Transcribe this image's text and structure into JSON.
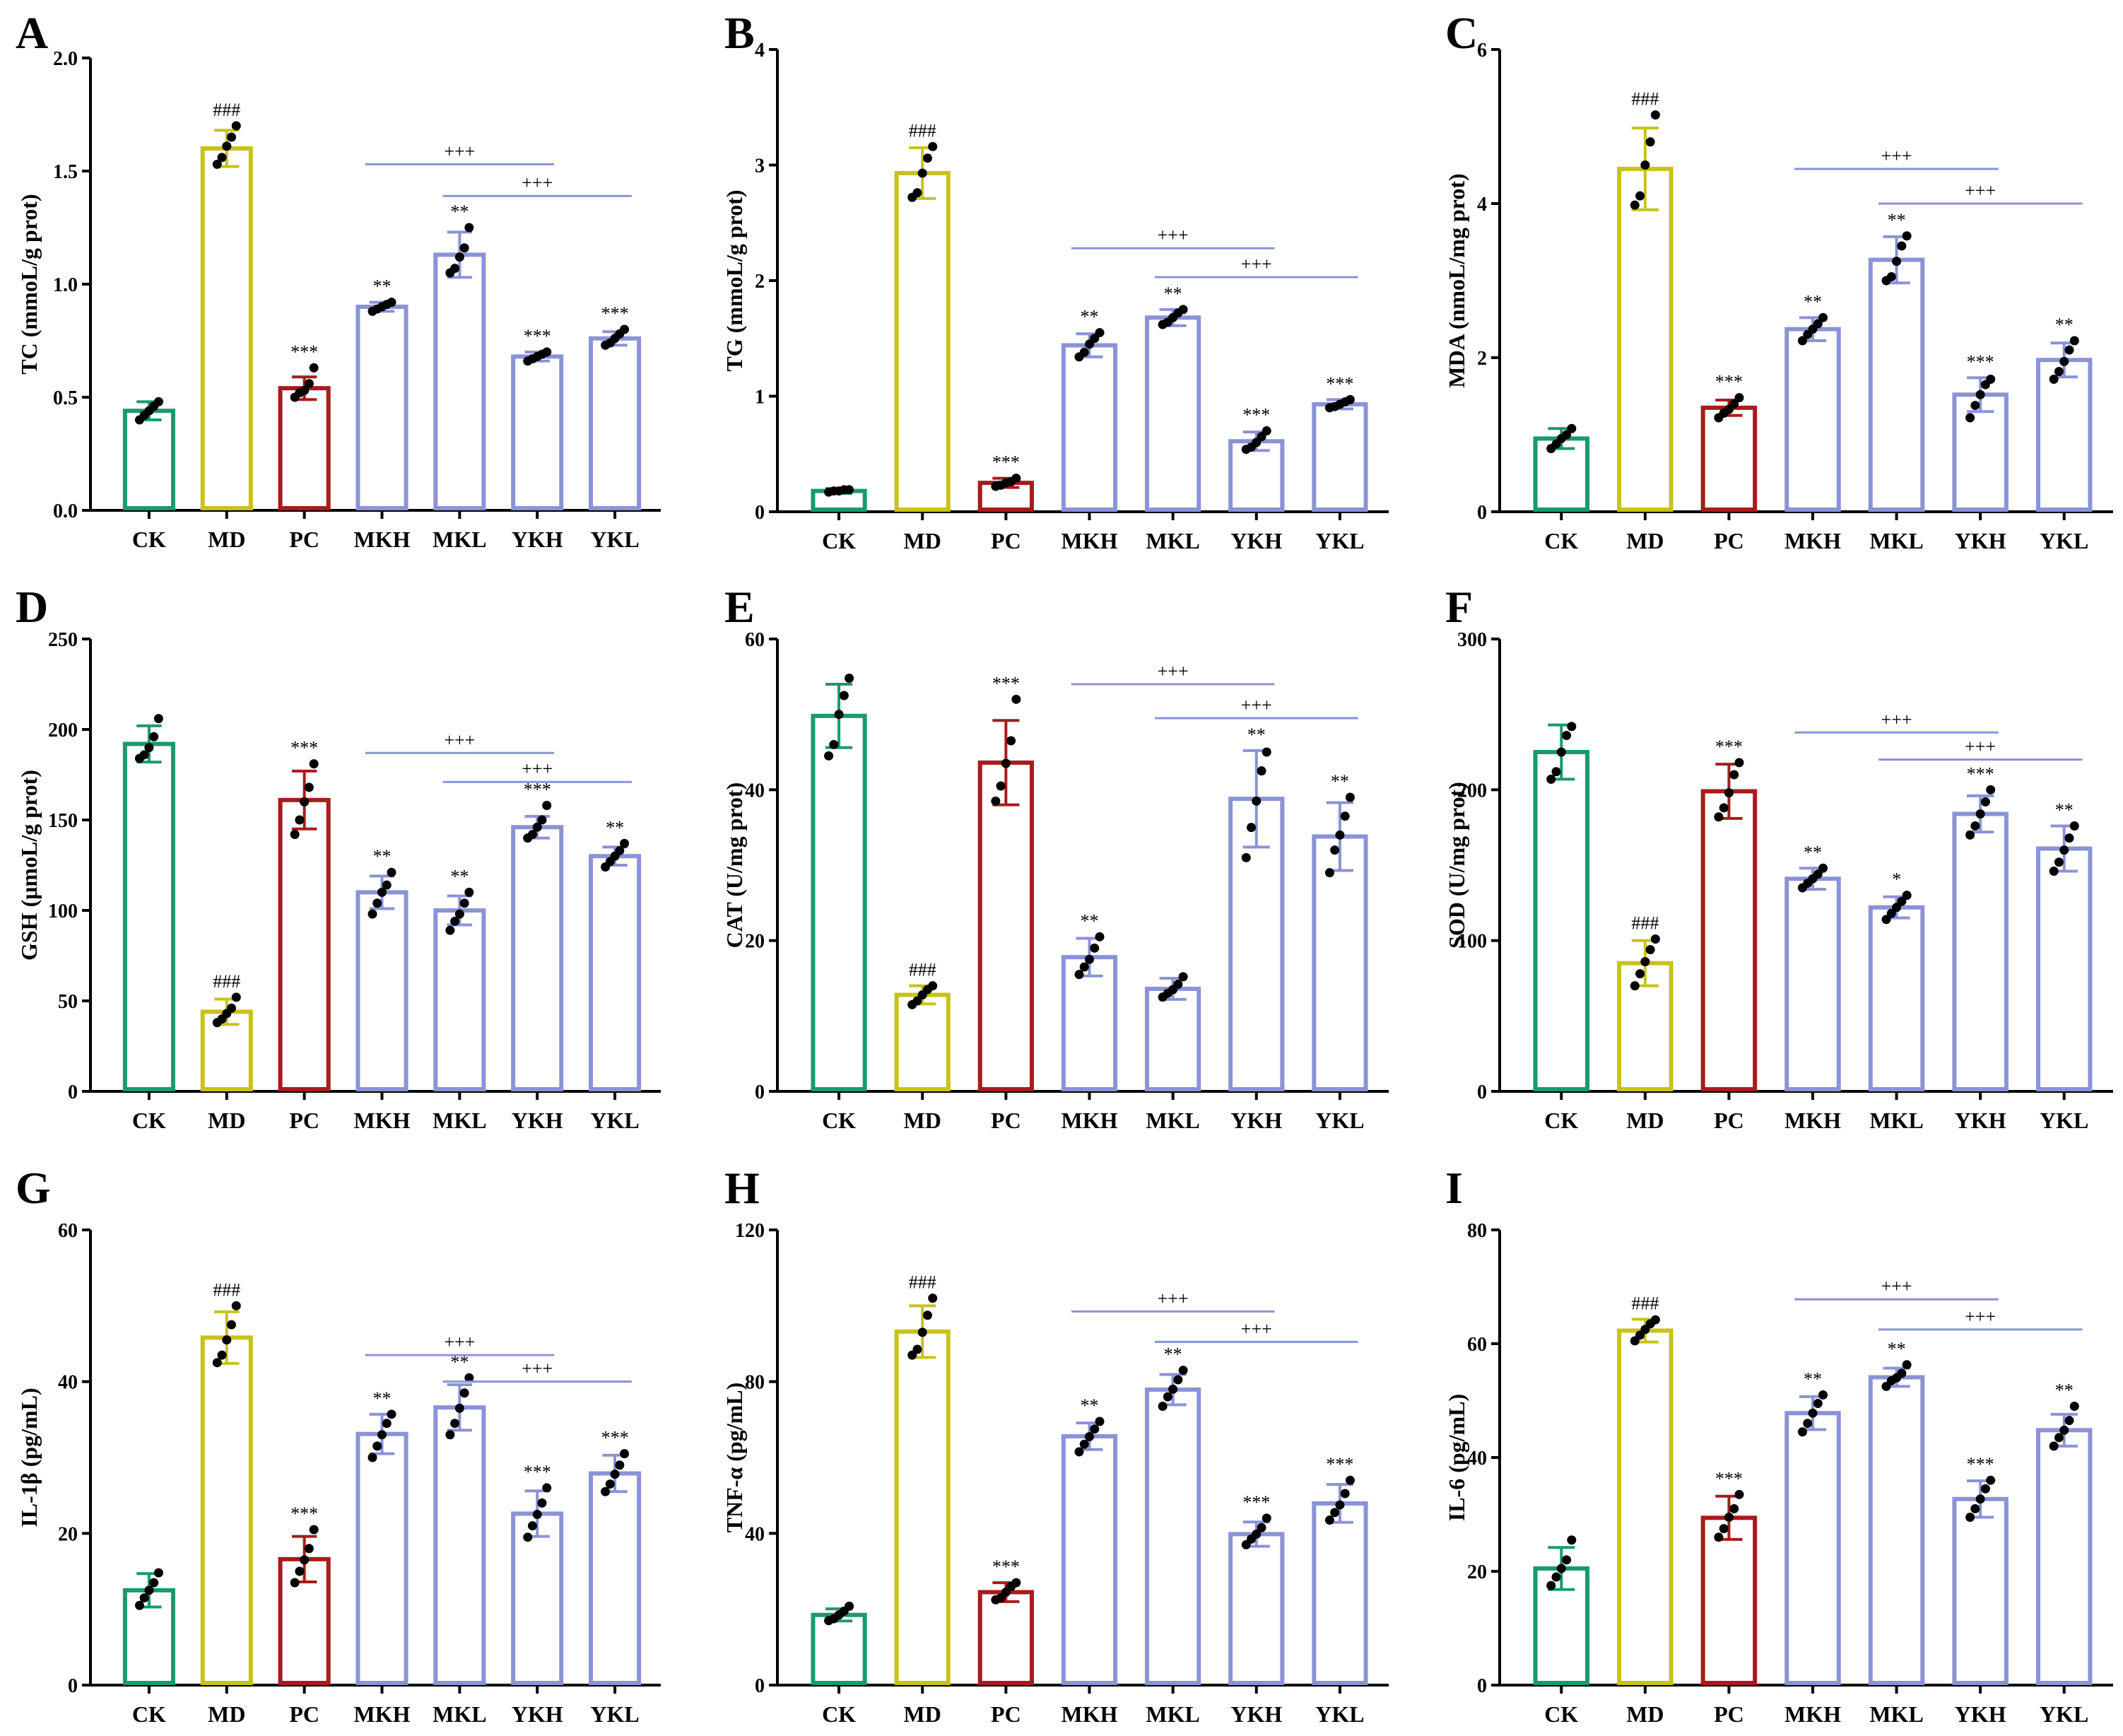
{
  "figure_title": "",
  "colors": {
    "CK": "#1a9a6a",
    "MD": "#c8c21a",
    "PC": "#a81b1b",
    "MKH": "#8a93d6",
    "MKL": "#8a93d6",
    "YKH": "#8a93d6",
    "YKL": "#8a93d6",
    "points": "#000000",
    "comparison_line": "#8a93d6"
  },
  "chart_data": [
    {
      "type": "bar",
      "panel": "A",
      "ylabel": "TC (mmoL/g prot)",
      "categories": [
        "CK",
        "MD",
        "PC",
        "MKH",
        "MKL",
        "YKH",
        "YKL"
      ],
      "values": [
        0.44,
        1.6,
        0.54,
        0.9,
        1.13,
        0.68,
        0.76
      ],
      "errors": [
        0.04,
        0.08,
        0.05,
        0.02,
        0.1,
        0.02,
        0.03
      ],
      "points": [
        [
          0.4,
          0.42,
          0.44,
          0.46,
          0.48
        ],
        [
          1.53,
          1.56,
          1.61,
          1.65,
          1.7
        ],
        [
          0.5,
          0.52,
          0.53,
          0.56,
          0.63
        ],
        [
          0.88,
          0.89,
          0.9,
          0.91,
          0.92
        ],
        [
          1.05,
          1.07,
          1.12,
          1.16,
          1.25
        ],
        [
          0.66,
          0.67,
          0.68,
          0.69,
          0.7
        ],
        [
          0.73,
          0.74,
          0.76,
          0.78,
          0.8
        ]
      ],
      "significance": [
        "",
        "###",
        "***",
        "**",
        "**",
        "***",
        "***"
      ],
      "ylim": [
        0,
        2.0
      ],
      "yticks": [
        0.0,
        0.5,
        1.0,
        1.5,
        2.0
      ],
      "ytick_labels": [
        "0.0",
        "0.5",
        "1.0",
        "1.5",
        "2.0"
      ],
      "comparisons": [
        {
          "from": "MKH",
          "to": "YKH",
          "label": "+++",
          "y": 1.53
        },
        {
          "from": "MKL",
          "to": "YKL",
          "label": "+++",
          "y": 1.39
        }
      ]
    },
    {
      "type": "bar",
      "panel": "B",
      "ylabel": "TG (mmoL/g prot)",
      "categories": [
        "CK",
        "MD",
        "PC",
        "MKH",
        "MKL",
        "YKH",
        "YKL"
      ],
      "values": [
        0.18,
        2.93,
        0.25,
        1.44,
        1.68,
        0.61,
        0.93
      ],
      "errors": [
        0.02,
        0.22,
        0.04,
        0.1,
        0.07,
        0.08,
        0.04
      ],
      "points": [
        [
          0.17,
          0.18,
          0.18,
          0.19,
          0.19
        ],
        [
          2.72,
          2.76,
          2.93,
          3.06,
          3.16
        ],
        [
          0.22,
          0.23,
          0.25,
          0.26,
          0.29
        ],
        [
          1.34,
          1.38,
          1.45,
          1.5,
          1.55
        ],
        [
          1.62,
          1.64,
          1.68,
          1.72,
          1.75
        ],
        [
          0.54,
          0.56,
          0.6,
          0.65,
          0.7
        ],
        [
          0.9,
          0.91,
          0.93,
          0.95,
          0.97
        ]
      ],
      "significance": [
        "",
        "###",
        "***",
        "**",
        "**",
        "***",
        "***"
      ],
      "ylim": [
        0,
        4
      ],
      "yticks": [
        0,
        1,
        2,
        3,
        4
      ],
      "ytick_labels": [
        "0",
        "1",
        "2",
        "3",
        "4"
      ],
      "comparisons": [
        {
          "from": "MKH",
          "to": "YKH",
          "label": "+++",
          "y": 2.28
        },
        {
          "from": "MKL",
          "to": "YKL",
          "label": "+++",
          "y": 2.03
        }
      ]
    },
    {
      "type": "bar",
      "panel": "C",
      "ylabel": "MDA (nmoL/mg prot)",
      "categories": [
        "CK",
        "MD",
        "PC",
        "MKH",
        "MKL",
        "YKH",
        "YKL"
      ],
      "values": [
        0.95,
        4.45,
        1.35,
        2.37,
        3.27,
        1.52,
        1.97
      ],
      "errors": [
        0.13,
        0.53,
        0.1,
        0.15,
        0.3,
        0.22,
        0.22
      ],
      "points": [
        [
          0.82,
          0.88,
          0.95,
          1.0,
          1.08
        ],
        [
          3.98,
          4.1,
          4.5,
          4.8,
          5.15
        ],
        [
          1.22,
          1.28,
          1.33,
          1.4,
          1.48
        ],
        [
          2.22,
          2.3,
          2.37,
          2.44,
          2.52
        ],
        [
          3.0,
          3.05,
          3.25,
          3.45,
          3.58
        ],
        [
          1.22,
          1.38,
          1.52,
          1.65,
          1.72
        ],
        [
          1.72,
          1.82,
          1.95,
          2.1,
          2.22
        ]
      ],
      "significance": [
        "",
        "###",
        "***",
        "**",
        "**",
        "***",
        "**"
      ],
      "ylim": [
        0,
        6
      ],
      "yticks": [
        0,
        2,
        4,
        6
      ],
      "ytick_labels": [
        "0",
        "2",
        "4",
        "6"
      ],
      "comparisons": [
        {
          "from": "MKH",
          "to": "YKH",
          "label": "+++",
          "y": 4.45
        },
        {
          "from": "MKL",
          "to": "YKL",
          "label": "+++",
          "y": 4.0
        }
      ]
    },
    {
      "type": "bar",
      "panel": "D",
      "ylabel": "GSH (μmoL/g prot)",
      "categories": [
        "CK",
        "MD",
        "PC",
        "MKH",
        "MKL",
        "YKH",
        "YKL"
      ],
      "values": [
        192,
        44,
        161,
        110,
        100,
        146,
        130
      ],
      "errors": [
        10,
        7,
        16,
        9,
        8,
        6,
        5
      ],
      "points": [
        [
          184,
          186,
          190,
          196,
          206
        ],
        [
          38,
          40,
          43,
          46,
          52
        ],
        [
          142,
          150,
          160,
          168,
          181
        ],
        [
          98,
          104,
          110,
          114,
          121
        ],
        [
          89,
          94,
          98,
          104,
          110
        ],
        [
          140,
          142,
          146,
          150,
          158
        ],
        [
          124,
          127,
          130,
          133,
          137
        ]
      ],
      "significance": [
        "",
        "###",
        "***",
        "**",
        "**",
        "***",
        "**"
      ],
      "ylim": [
        0,
        250
      ],
      "yticks": [
        0,
        50,
        100,
        150,
        200,
        250
      ],
      "ytick_labels": [
        "0",
        "50",
        "100",
        "150",
        "200",
        "250"
      ],
      "comparisons": [
        {
          "from": "MKH",
          "to": "YKH",
          "label": "+++",
          "y": 187
        },
        {
          "from": "MKL",
          "to": "YKL",
          "label": "+++",
          "y": 171
        }
      ]
    },
    {
      "type": "bar",
      "panel": "E",
      "ylabel": "CAT (U/mg prot)",
      "categories": [
        "CK",
        "MD",
        "PC",
        "MKH",
        "MKL",
        "YKH",
        "YKL"
      ],
      "values": [
        49.8,
        12.8,
        43.6,
        17.8,
        13.6,
        38.8,
        33.8
      ],
      "errors": [
        4.2,
        1.2,
        5.6,
        2.5,
        1.4,
        6.4,
        4.5
      ],
      "points": [
        [
          44.5,
          46.0,
          50.0,
          52.5,
          54.8
        ],
        [
          11.5,
          12.0,
          12.8,
          13.5,
          14.0
        ],
        [
          38.5,
          40.5,
          43.5,
          46.5,
          52.0
        ],
        [
          15.5,
          16.5,
          17.5,
          19.0,
          20.5
        ],
        [
          12.5,
          13.0,
          13.5,
          14.2,
          15.2
        ],
        [
          31.0,
          35.0,
          38.5,
          42.5,
          45.0
        ],
        [
          29.0,
          32.0,
          34.0,
          36.5,
          39.0
        ]
      ],
      "significance": [
        "",
        "###",
        "***",
        "**",
        "",
        "**",
        "**"
      ],
      "ylim": [
        0,
        60
      ],
      "yticks": [
        0,
        20,
        40,
        60
      ],
      "ytick_labels": [
        "0",
        "20",
        "40",
        "60"
      ],
      "comparisons": [
        {
          "from": "MKH",
          "to": "YKH",
          "label": "+++",
          "y": 54.0
        },
        {
          "from": "MKL",
          "to": "YKL",
          "label": "+++",
          "y": 49.5
        }
      ]
    },
    {
      "type": "bar",
      "panel": "F",
      "ylabel": "SOD (U/mg prot)",
      "categories": [
        "CK",
        "MD",
        "PC",
        "MKH",
        "MKL",
        "YKH",
        "YKL"
      ],
      "values": [
        225,
        85,
        199,
        141,
        122,
        184,
        161
      ],
      "errors": [
        18,
        15,
        18,
        7,
        7,
        12,
        15
      ],
      "points": [
        [
          207,
          212,
          225,
          236,
          242
        ],
        [
          70,
          78,
          86,
          94,
          101
        ],
        [
          182,
          188,
          198,
          210,
          218
        ],
        [
          135,
          138,
          141,
          144,
          148
        ],
        [
          114,
          118,
          122,
          126,
          130
        ],
        [
          170,
          176,
          184,
          192,
          200
        ],
        [
          146,
          152,
          160,
          168,
          176
        ]
      ],
      "significance": [
        "",
        "###",
        "***",
        "**",
        "*",
        "***",
        "**"
      ],
      "ylim": [
        0,
        300
      ],
      "yticks": [
        0,
        100,
        200,
        300
      ],
      "ytick_labels": [
        "0",
        "100",
        "200",
        "300"
      ],
      "comparisons": [
        {
          "from": "MKH",
          "to": "YKH",
          "label": "+++",
          "y": 238
        },
        {
          "from": "MKL",
          "to": "YKL",
          "label": "+++",
          "y": 220
        }
      ]
    },
    {
      "type": "bar",
      "panel": "G",
      "ylabel": "IL-1β (pg/mL)",
      "categories": [
        "CK",
        "MD",
        "PC",
        "MKH",
        "MKL",
        "YKH",
        "YKL"
      ],
      "values": [
        12.5,
        45.8,
        16.6,
        33.1,
        36.6,
        22.6,
        27.9
      ],
      "errors": [
        2.2,
        3.4,
        3.0,
        2.6,
        3.0,
        3.0,
        2.4
      ],
      "points": [
        [
          10.5,
          11.5,
          12.5,
          13.5,
          14.8
        ],
        [
          42.5,
          43.5,
          45.5,
          47.5,
          50.0
        ],
        [
          13.5,
          15.0,
          16.5,
          18.0,
          20.5
        ],
        [
          30.0,
          31.5,
          33.0,
          34.5,
          35.7
        ],
        [
          33.0,
          34.5,
          36.5,
          38.5,
          40.5
        ],
        [
          19.5,
          21.0,
          22.5,
          24.0,
          26.0
        ],
        [
          25.5,
          26.5,
          27.8,
          29.0,
          30.5
        ]
      ],
      "significance": [
        "",
        "###",
        "***",
        "**",
        "**",
        "***",
        "***"
      ],
      "ylim": [
        0,
        60
      ],
      "yticks": [
        0,
        20,
        40,
        60
      ],
      "ytick_labels": [
        "0",
        "20",
        "40",
        "60"
      ],
      "comparisons": [
        {
          "from": "MKH",
          "to": "YKH",
          "label": "+++",
          "y": 43.5
        },
        {
          "from": "MKL",
          "to": "YKL",
          "label": "+++",
          "y": 40.0
        }
      ]
    },
    {
      "type": "bar",
      "panel": "H",
      "ylabel": "TNF-α (pg/mL)",
      "categories": [
        "CK",
        "MD",
        "PC",
        "MKH",
        "MKL",
        "YKH",
        "YKL"
      ],
      "values": [
        18.5,
        93.2,
        24.5,
        65.6,
        77.9,
        39.8,
        47.9
      ],
      "errors": [
        1.6,
        6.8,
        2.5,
        3.5,
        4.0,
        3.2,
        5.0
      ],
      "points": [
        [
          17.0,
          17.5,
          18.5,
          19.5,
          20.8
        ],
        [
          87.0,
          88.5,
          93.0,
          97.5,
          102.0
        ],
        [
          22.5,
          23.0,
          24.5,
          26.0,
          27.0
        ],
        [
          61.5,
          63.5,
          65.5,
          67.5,
          69.5
        ],
        [
          73.5,
          76.0,
          78.0,
          80.5,
          83.0
        ],
        [
          37.0,
          38.5,
          39.8,
          41.5,
          44.0
        ],
        [
          43.5,
          45.5,
          47.5,
          50.5,
          54.0
        ]
      ],
      "significance": [
        "",
        "###",
        "***",
        "**",
        "**",
        "***",
        "***"
      ],
      "ylim": [
        0,
        120
      ],
      "yticks": [
        0,
        40,
        80,
        120
      ],
      "ytick_labels": [
        "0",
        "40",
        "80",
        "120"
      ],
      "comparisons": [
        {
          "from": "MKH",
          "to": "YKH",
          "label": "+++",
          "y": 98.5
        },
        {
          "from": "MKL",
          "to": "YKL",
          "label": "+++",
          "y": 90.5
        }
      ]
    },
    {
      "type": "bar",
      "panel": "I",
      "ylabel": "IL-6 (pg/mL)",
      "categories": [
        "CK",
        "MD",
        "PC",
        "MKH",
        "MKL",
        "YKH",
        "YKL"
      ],
      "values": [
        20.5,
        62.3,
        29.4,
        47.8,
        54.1,
        32.7,
        44.8
      ],
      "errors": [
        3.7,
        2.0,
        3.8,
        2.9,
        1.6,
        3.2,
        2.8
      ],
      "points": [
        [
          17.5,
          19.0,
          20.5,
          22.0,
          25.5
        ],
        [
          60.5,
          61.5,
          62.5,
          63.5,
          64.2
        ],
        [
          26.0,
          27.5,
          29.5,
          31.0,
          33.5
        ],
        [
          44.5,
          46.0,
          47.8,
          49.5,
          51.0
        ],
        [
          52.5,
          53.5,
          54.0,
          54.8,
          56.3
        ],
        [
          29.5,
          31.0,
          32.7,
          34.5,
          36.0
        ],
        [
          42.0,
          43.5,
          44.8,
          46.5,
          49.0
        ]
      ],
      "significance": [
        "",
        "###",
        "***",
        "**",
        "**",
        "***",
        "**"
      ],
      "ylim": [
        0,
        80
      ],
      "yticks": [
        0,
        20,
        40,
        60,
        80
      ],
      "ytick_labels": [
        "0",
        "20",
        "40",
        "60",
        "80"
      ],
      "comparisons": [
        {
          "from": "MKH",
          "to": "YKH",
          "label": "+++",
          "y": 67.8
        },
        {
          "from": "MKL",
          "to": "YKL",
          "label": "+++",
          "y": 62.5
        }
      ]
    }
  ]
}
